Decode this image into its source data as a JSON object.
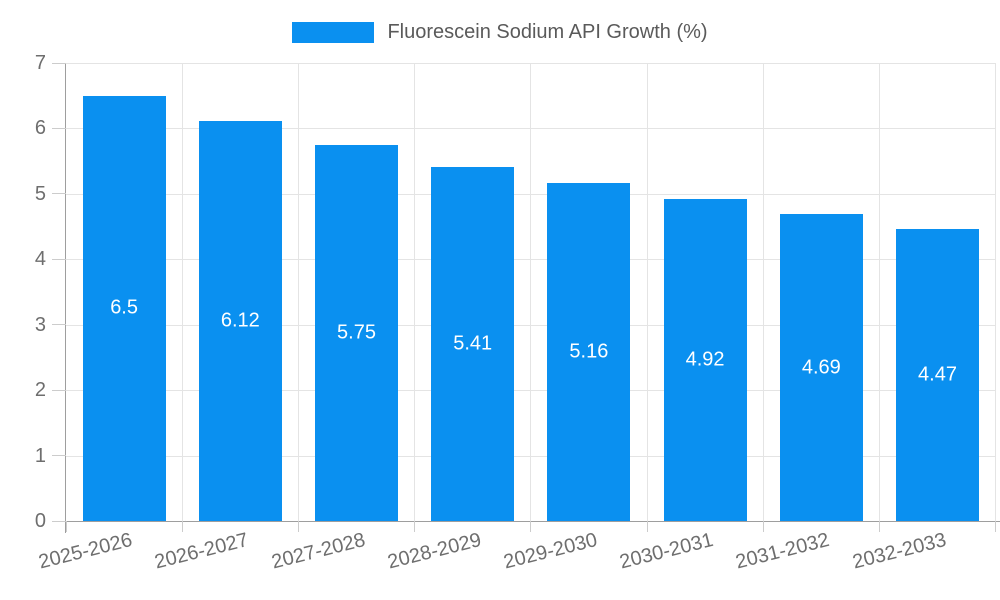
{
  "chart_data": {
    "type": "bar",
    "title": "",
    "legend_label": "Fluorescein Sodium API Growth (%)",
    "legend_position": "top-center",
    "categories": [
      "2025-2026",
      "2026-2027",
      "2027-2028",
      "2028-2029",
      "2029-2030",
      "2030-2031",
      "2031-2032",
      "2032-2033"
    ],
    "values": [
      6.5,
      6.12,
      5.75,
      5.41,
      5.16,
      4.92,
      4.69,
      4.47
    ],
    "value_labels": [
      "6.5",
      "6.12",
      "5.75",
      "5.41",
      "5.16",
      "4.92",
      "4.69",
      "4.47"
    ],
    "bar_label_position": "inside-center",
    "xlabel": "",
    "ylabel": "",
    "ylim": [
      0,
      7
    ],
    "yticks": [
      0,
      1,
      2,
      3,
      4,
      5,
      6,
      7
    ],
    "grid": "on",
    "x_tick_label_rotation_deg": -14,
    "colors": {
      "bar": "#0A90F0",
      "bar_label": "#ffffff",
      "axis_line": "#9e9e9e",
      "tick_mark": "#cccccc",
      "grid_line": "#e4e4e4",
      "axis_text": "#6e6e6e",
      "legend_text": "#5a5a5a",
      "background": "#ffffff"
    }
  }
}
